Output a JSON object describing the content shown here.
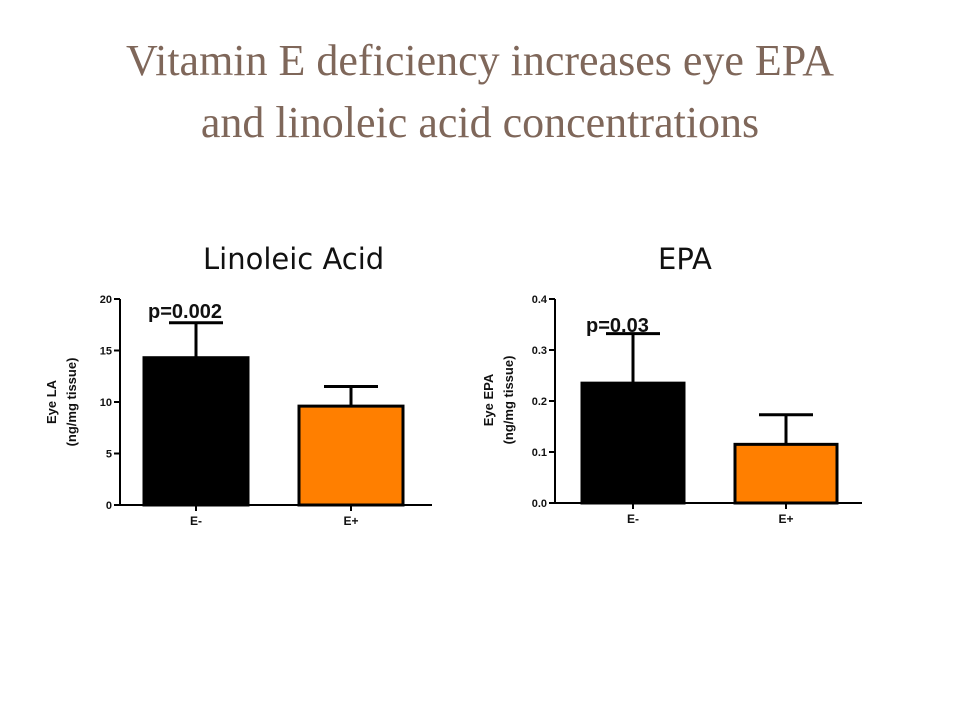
{
  "slide": {
    "title_line1": "Vitamin E deficiency increases eye EPA",
    "title_line2": "and linoleic acid concentrations"
  },
  "colors": {
    "title": "#7f675a",
    "bar_e_minus": "#000000",
    "bar_e_plus": "#ff7f00"
  },
  "chart_data": [
    {
      "type": "bar",
      "title": "Linoleic Acid",
      "ylabel_line1": "Eye LA",
      "ylabel_line2": "(ng/mg tissue)",
      "categories": [
        "E-",
        "E+"
      ],
      "values": [
        14.3,
        9.6
      ],
      "errors": [
        3.4,
        1.9
      ],
      "ylim": [
        0,
        20
      ],
      "yticks": [
        "0",
        "5",
        "10",
        "15",
        "20"
      ],
      "annotation": "p=0.002",
      "bar_colors": [
        "#000000",
        "#ff7f00"
      ]
    },
    {
      "type": "bar",
      "title": "EPA",
      "ylabel_line1": "Eye EPA",
      "ylabel_line2": "(ng/mg tissue)",
      "categories": [
        "E-",
        "E+"
      ],
      "values": [
        0.235,
        0.115
      ],
      "errors": [
        0.097,
        0.058
      ],
      "ylim": [
        0,
        0.4
      ],
      "yticks": [
        "0.0",
        "0.1",
        "0.2",
        "0.3",
        "0.4"
      ],
      "annotation": "p=0.03",
      "bar_colors": [
        "#000000",
        "#ff7f00"
      ]
    }
  ]
}
